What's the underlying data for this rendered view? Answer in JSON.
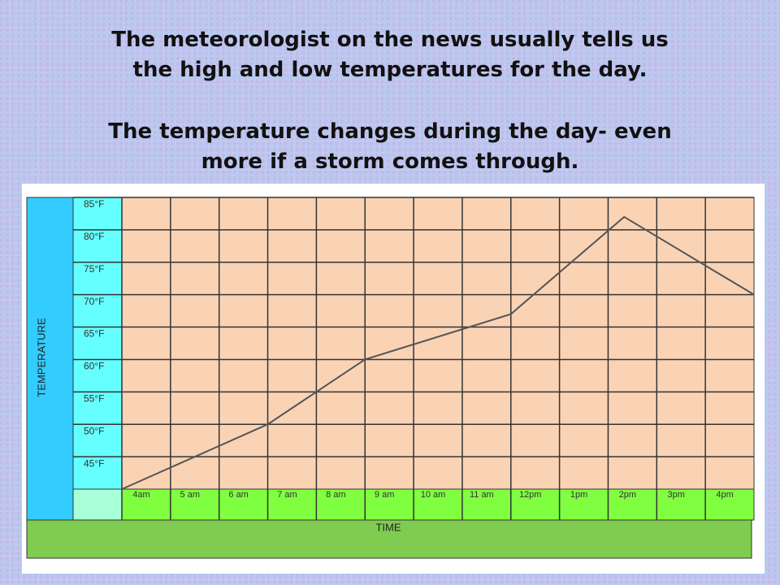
{
  "slide_text": [
    "The meteorologist on the news usually tells us",
    "the high and low temperatures for the day.",
    "The temperature changes during the day- even",
    "more if a storm comes through."
  ],
  "chart_data": {
    "type": "line",
    "x_label": "TIME",
    "y_label": "TEMPERATURE",
    "x": [
      4,
      7,
      9,
      12,
      14.33,
      17
    ],
    "values": [
      40,
      50,
      60,
      67,
      82,
      70
    ],
    "color": "#555555",
    "xlim": [
      4,
      17
    ],
    "xticks": [
      {
        "value": 4,
        "label": "4am"
      },
      {
        "value": 5,
        "label": "5 am"
      },
      {
        "value": 6,
        "label": "6 am"
      },
      {
        "value": 7,
        "label": "7 am"
      },
      {
        "value": 8,
        "label": "8 am"
      },
      {
        "value": 9,
        "label": "9 am"
      },
      {
        "value": 10,
        "label": "10 am"
      },
      {
        "value": 11,
        "label": "11 am"
      },
      {
        "value": 12,
        "label": "12pm"
      },
      {
        "value": 13,
        "label": "1pm"
      },
      {
        "value": 14,
        "label": "2pm"
      },
      {
        "value": 15,
        "label": "3pm"
      },
      {
        "value": 16,
        "label": "4pm"
      }
    ],
    "ylim": [
      40,
      85
    ],
    "yticks": [
      {
        "value": 45,
        "label": "45°F"
      },
      {
        "value": 50,
        "label": "50°F"
      },
      {
        "value": 55,
        "label": "55°F"
      },
      {
        "value": 60,
        "label": "60°F"
      },
      {
        "value": 65,
        "label": "65°F"
      },
      {
        "value": 70,
        "label": "70°F"
      },
      {
        "value": 75,
        "label": "75°F"
      },
      {
        "value": 80,
        "label": "80°F"
      },
      {
        "value": 85,
        "label": "85°F"
      }
    ],
    "grid": true
  }
}
